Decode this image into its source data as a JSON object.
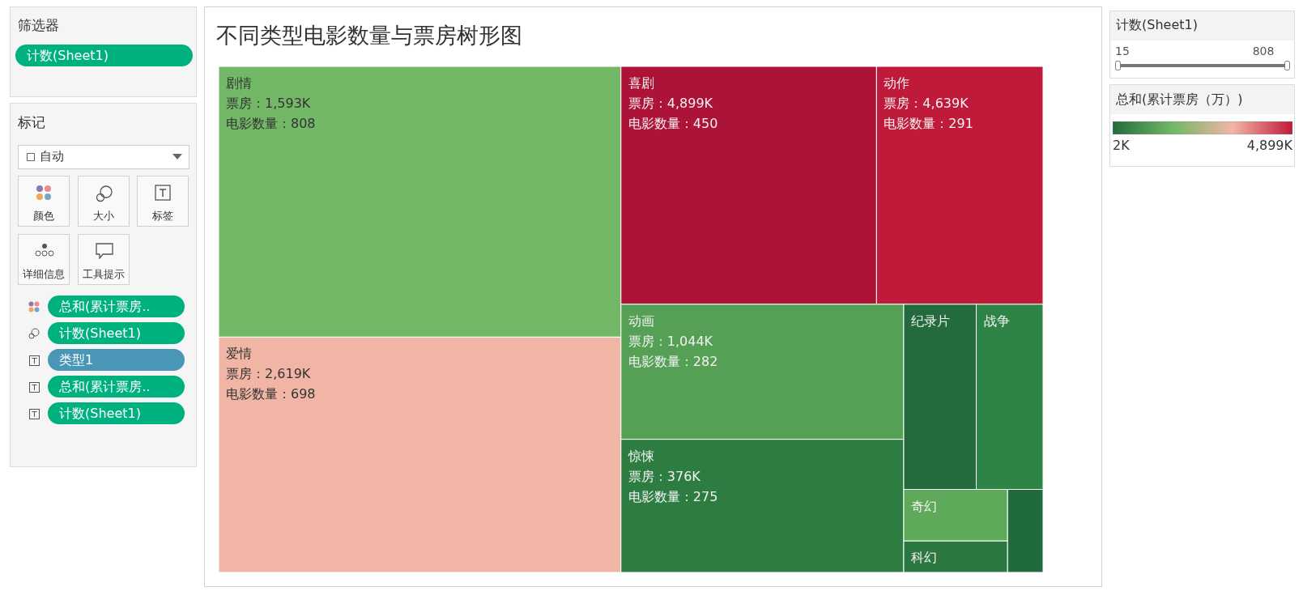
{
  "chart_data": {
    "type": "other",
    "title": "不同类型电影数量与票房树形图",
    "categories": [
      "剧情",
      "爱情",
      "喜剧",
      "动作",
      "动画",
      "惊悚",
      "纪录片",
      "战争",
      "奇幻",
      "科幻",
      null
    ],
    "series": [
      {
        "name": "票房：",
        "colors": [
          "#72b866",
          "#f1b5a6",
          "#ad1237",
          "#c01a3b",
          "#55a055",
          "#2d7d43",
          "#236b3c",
          "#2e8446",
          "#5ea95a",
          "#2a7840",
          "#216a3b"
        ],
        "values": [
          1593,
          2619,
          4899,
          4639,
          1044,
          376,
          null,
          null,
          null,
          null,
          null
        ],
        "value_labels": [
          "1,593K",
          "2,619K",
          "4,899K",
          "4,639K",
          "1,044K",
          "376K",
          null,
          null,
          null,
          null,
          null
        ]
      },
      {
        "name": "电影数量：",
        "values": [
          808,
          698,
          450,
          291,
          282,
          275,
          null,
          null,
          null,
          null,
          null
        ]
      }
    ],
    "data_labels": true,
    "clabel": "总和(累计票房（万）)",
    "annotations": [
      "筛选器",
      "计数(Sheet1)",
      "标记",
      "自动",
      "颜色",
      "大小",
      "标签",
      "详细信息",
      "工具提示",
      "总和(累计票房..",
      "计数(Sheet1)",
      "类型1",
      "总和(累计票房..",
      "计数(Sheet1)",
      "计数(Sheet1)",
      "15",
      "808",
      "2K",
      "4,899K"
    ]
  }
}
